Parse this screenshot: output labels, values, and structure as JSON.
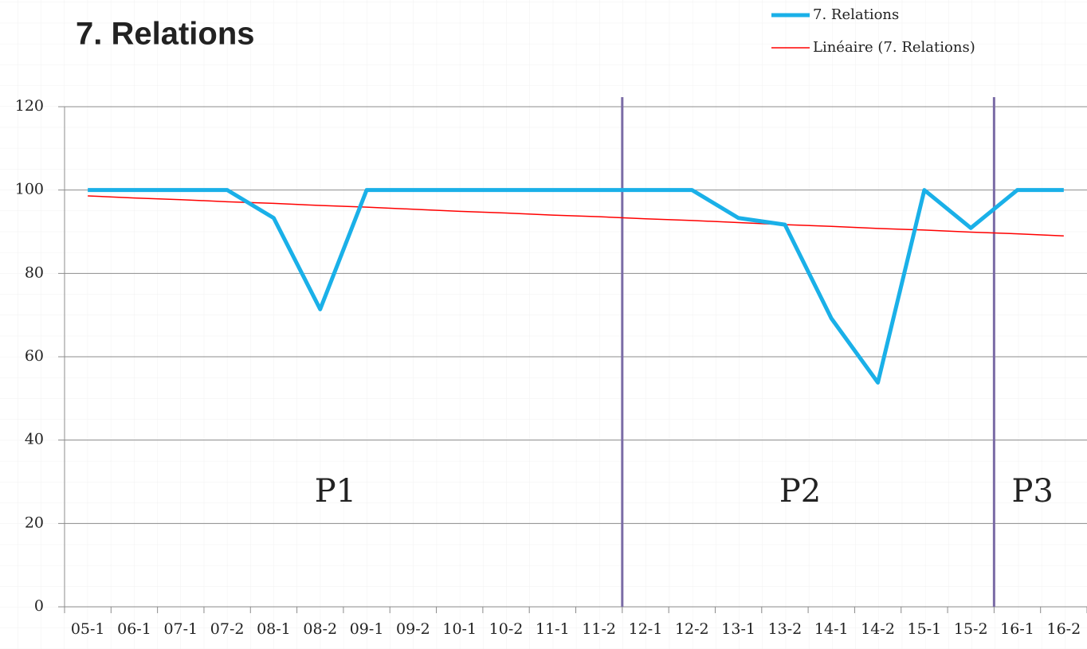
{
  "chart_data": {
    "type": "line",
    "title": "7. Relations",
    "categories": [
      "05-1",
      "06-1",
      "07-1",
      "07-2",
      "08-1",
      "08-2",
      "09-1",
      "09-2",
      "10-1",
      "10-2",
      "11-1",
      "11-2",
      "12-1",
      "12-2",
      "13-1",
      "13-2",
      "14-1",
      "14-2",
      "15-1",
      "15-2",
      "16-1",
      "16-2"
    ],
    "series": [
      {
        "name": "7. Relations",
        "color": "#1ab0e8",
        "values": [
          100,
          100,
          100,
          100,
          93.3,
          71.4,
          100,
          100,
          100,
          100,
          100,
          100,
          100,
          100,
          93.3,
          91.7,
          69.2,
          53.8,
          100,
          90.9,
          100,
          100
        ]
      },
      {
        "name": "Linéaire (7. Relations)",
        "color": "#ff0000",
        "values": [
          98.6,
          98.1,
          97.7,
          97.2,
          96.8,
          96.3,
          95.9,
          95.4,
          94.9,
          94.5,
          94.0,
          93.6,
          93.1,
          92.7,
          92.2,
          91.7,
          91.3,
          90.8,
          90.4,
          89.9,
          89.5,
          89.0
        ]
      }
    ],
    "ylim": [
      0,
      120
    ],
    "yticks": [
      0,
      20,
      40,
      60,
      80,
      100,
      120
    ],
    "grid": true,
    "legend": "top-right",
    "annotations": [
      "P1",
      "P2",
      "P3"
    ],
    "dividers": [
      "12-1",
      "16-1"
    ],
    "divider_color": "#7b6ca6"
  }
}
